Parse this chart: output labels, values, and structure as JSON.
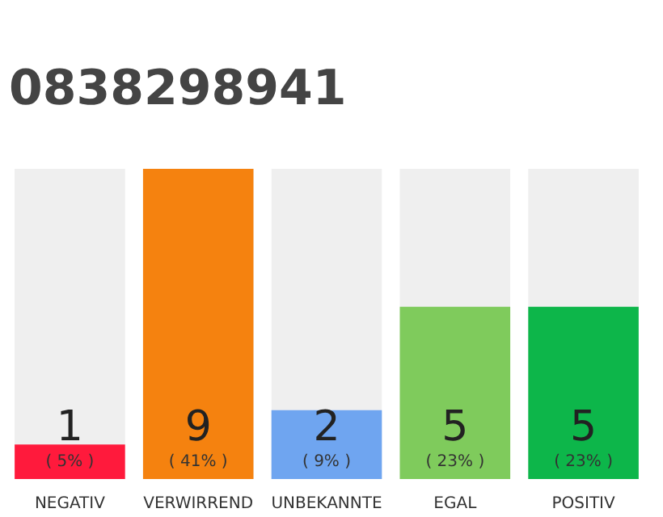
{
  "chart_data": {
    "type": "bar",
    "title": "0838298941",
    "categories": [
      "NEGATIV",
      "VERWIRREND",
      "UNBEKANNTE",
      "EGAL",
      "POSITIV"
    ],
    "values": [
      1,
      9,
      2,
      5,
      5
    ],
    "colors": [
      "#ff1a3c",
      "#f5820f",
      "#6fa5f0",
      "#7fcb5c",
      "#0db64a"
    ],
    "ylim": [
      0,
      9
    ],
    "data_labels": true,
    "annotations": [
      "( 5% )",
      "( 41% )",
      "( 9% )",
      "( 23% )",
      "( 23% )"
    ],
    "grid": false
  }
}
